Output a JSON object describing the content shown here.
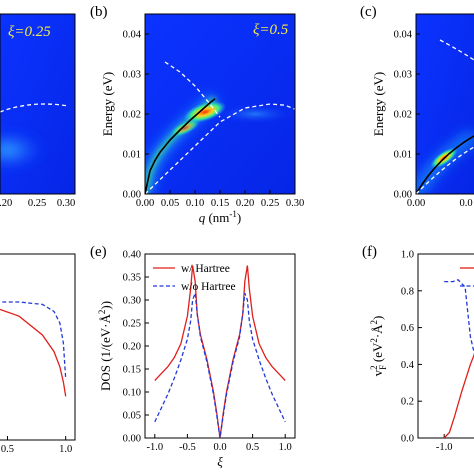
{
  "panels": {
    "a": {
      "xi_label": "ξ=0.25",
      "x_ticks": [
        "0.20",
        "0.25",
        "0.30"
      ]
    },
    "b": {
      "letter": "(b)",
      "xi_label": "ξ=0.5",
      "ylabel": "Energy (eV)",
      "xlabel_var": "q",
      "xlabel_unit": "(nm",
      "xlabel_exp": "-1",
      "xlabel_close": ")",
      "x_ticks": [
        "0.00",
        "0.05",
        "0.10",
        "0.15",
        "0.20",
        "0.25",
        "0.30"
      ],
      "y_ticks": [
        "0.00",
        "0.01",
        "0.02",
        "0.03",
        "0.04"
      ]
    },
    "c": {
      "letter": "(c)",
      "ylabel": "Energy (eV)",
      "x_ticks": [
        "0.00",
        "0.0"
      ],
      "y_ticks": [
        "0.00",
        "0.01",
        "0.02",
        "0.03",
        "0.04"
      ]
    },
    "d": {
      "x_ticks": [
        "0.5",
        "1.0"
      ]
    },
    "e": {
      "letter": "(e)",
      "ylabel": "DOS (1/(eV·Å",
      "ylabel_exp": "2",
      "ylabel_close": "))",
      "xlabel": "ξ",
      "x_ticks": [
        "-1.0",
        "-0.5",
        "0.0",
        "0.5",
        "1.0"
      ],
      "y_ticks": [
        "0.00",
        "0.05",
        "0.10",
        "0.15",
        "0.20",
        "0.25",
        "0.30",
        "0.35",
        "0.40"
      ],
      "legend": [
        "w/ Hartree",
        "w/o Hartree"
      ]
    },
    "f": {
      "letter": "(f)",
      "ylabel_main": "v",
      "ylabel_sub": "F",
      "ylabel_sup": "2",
      "ylabel_rest": " (eV",
      "ylabel_exp2": "2",
      "ylabel_mid": "·Å",
      "ylabel_exp3": "2",
      "ylabel_close": ")",
      "x_ticks": [
        "-1.0"
      ],
      "y_ticks": [
        "0.0",
        "0.2",
        "0.4",
        "0.6",
        "0.8",
        "1.0"
      ]
    }
  },
  "colors": {
    "heatmap_bg": "#0a2bff",
    "heatmap_glow": "#1fb8ff",
    "w_hartree": "#e0201b",
    "wo_hartree": "#2238d8",
    "dashed_guide": "#ffffff"
  },
  "chart_data": [
    {
      "type": "heatmap",
      "panel": "b",
      "xlim": [
        0,
        0.3
      ],
      "ylim": [
        0,
        0.045
      ],
      "plasmon_curve": {
        "x": [
          0.0,
          0.01,
          0.02,
          0.03,
          0.05,
          0.07,
          0.09,
          0.11,
          0.13,
          0.14
        ],
        "y": [
          0.0,
          0.0058,
          0.0084,
          0.0104,
          0.0135,
          0.016,
          0.0184,
          0.0206,
          0.0228,
          0.0238
        ]
      },
      "upper_dashed": {
        "x": [
          0.04,
          0.07,
          0.1,
          0.13,
          0.15
        ],
        "y": [
          0.033,
          0.0305,
          0.027,
          0.0225,
          0.0192
        ]
      },
      "lower_dashed": {
        "x": [
          0.0,
          0.05,
          0.1,
          0.15,
          0.2,
          0.25,
          0.28,
          0.3
        ],
        "y": [
          0.0,
          0.006,
          0.012,
          0.018,
          0.0215,
          0.0225,
          0.0222,
          0.0212
        ]
      },
      "hot_region": {
        "x_center": 0.12,
        "y_center": 0.0205
      }
    },
    {
      "type": "line",
      "panel": "e",
      "xlim": [
        -1.15,
        1.15
      ],
      "ylim": [
        0,
        0.4
      ],
      "series": [
        {
          "name": "w/ Hartree",
          "x": [
            -1.0,
            -0.9,
            -0.8,
            -0.7,
            -0.6,
            -0.5,
            -0.45,
            -0.42,
            -0.38,
            -0.35,
            -0.3,
            -0.2,
            -0.1,
            -0.05,
            0.0,
            0.05,
            0.1,
            0.2,
            0.3,
            0.35,
            0.38,
            0.42,
            0.45,
            0.5,
            0.6,
            0.7,
            0.8,
            0.9,
            1.0
          ],
          "y": [
            0.125,
            0.14,
            0.155,
            0.175,
            0.205,
            0.265,
            0.325,
            0.375,
            0.34,
            0.27,
            0.225,
            0.17,
            0.1,
            0.055,
            0.0,
            0.055,
            0.1,
            0.17,
            0.225,
            0.27,
            0.34,
            0.375,
            0.325,
            0.265,
            0.205,
            0.175,
            0.155,
            0.14,
            0.125
          ]
        },
        {
          "name": "w/o Hartree",
          "x": [
            -1.0,
            -0.9,
            -0.8,
            -0.7,
            -0.6,
            -0.5,
            -0.45,
            -0.42,
            -0.38,
            -0.35,
            -0.3,
            -0.2,
            -0.1,
            -0.05,
            0.0,
            0.05,
            0.1,
            0.2,
            0.3,
            0.35,
            0.38,
            0.42,
            0.45,
            0.5,
            0.6,
            0.7,
            0.8,
            0.9,
            1.0
          ],
          "y": [
            0.035,
            0.065,
            0.095,
            0.13,
            0.17,
            0.215,
            0.255,
            0.3,
            0.315,
            0.27,
            0.22,
            0.165,
            0.095,
            0.05,
            0.0,
            0.05,
            0.095,
            0.165,
            0.22,
            0.27,
            0.315,
            0.3,
            0.255,
            0.215,
            0.17,
            0.13,
            0.095,
            0.065,
            0.035
          ]
        }
      ]
    },
    {
      "type": "line",
      "panel": "d",
      "xlim": [
        0.35,
        1.08
      ],
      "series": [
        {
          "name": "w/ Hartree",
          "x": [
            0.4,
            0.6,
            0.8,
            0.9,
            0.95,
            0.98,
            1.0
          ],
          "y": [
            0.95,
            0.88,
            0.72,
            0.58,
            0.45,
            0.32,
            0.2
          ]
        },
        {
          "name": "w/o Hartree",
          "x": [
            0.4,
            0.6,
            0.8,
            0.9,
            0.95,
            0.98,
            1.0
          ],
          "y": [
            1.0,
            1.0,
            0.98,
            0.92,
            0.82,
            0.65,
            0.35
          ]
        }
      ]
    },
    {
      "type": "line",
      "panel": "f",
      "xlim": [
        -1.15,
        -0.6
      ],
      "ylim": [
        0,
        1.0
      ],
      "series": [
        {
          "name": "w/ Hartree",
          "x": [
            -1.0,
            -0.97,
            -0.94,
            -0.9,
            -0.85,
            -0.8,
            -0.75,
            -0.7,
            -0.65
          ],
          "y": [
            0.0,
            0.03,
            0.12,
            0.25,
            0.4,
            0.52,
            0.6,
            0.64,
            0.66
          ]
        },
        {
          "name": "w/o Hartree",
          "x": [
            -1.0,
            -0.98,
            -0.95,
            -0.92,
            -0.88,
            -0.85,
            -0.8,
            -0.75,
            -0.7,
            -0.65
          ],
          "y": [
            0.85,
            0.85,
            0.85,
            0.86,
            0.82,
            0.55,
            0.35,
            0.25,
            0.2,
            0.18
          ]
        }
      ]
    }
  ]
}
